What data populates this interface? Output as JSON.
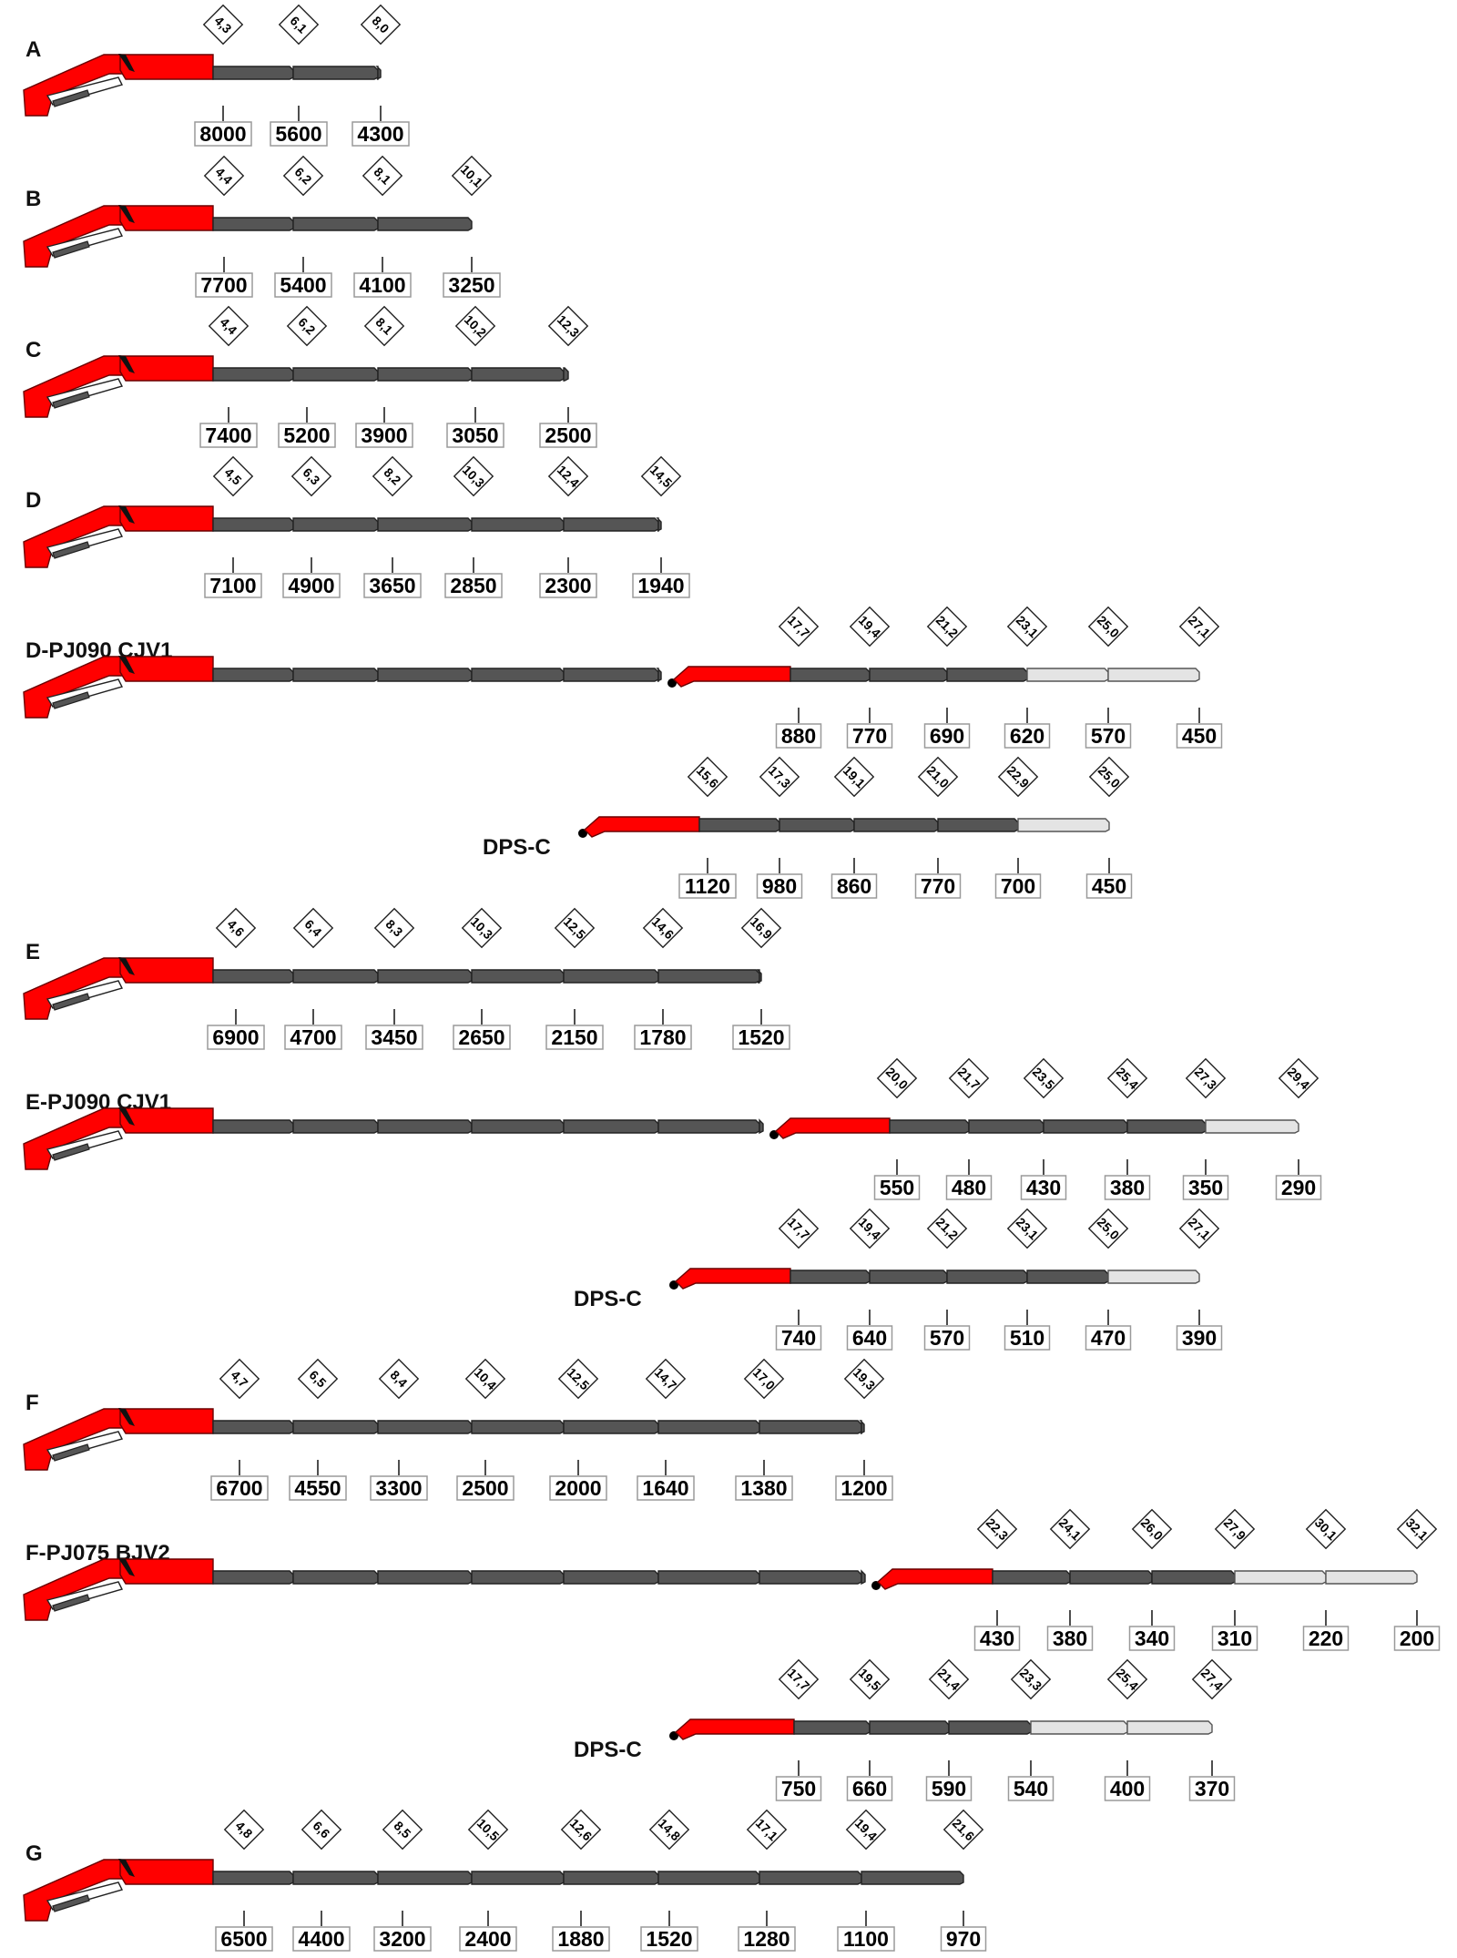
{
  "colors": {
    "boom_red": "#ff0000",
    "boom_dark": "#555555",
    "boom_light": "#e4e4e4"
  },
  "rows": [
    {
      "label": "A",
      "reaches": [
        "4,3",
        "6,1",
        "8,0"
      ],
      "capacities": [
        "8000",
        "5600",
        "4300"
      ]
    },
    {
      "label": "B",
      "reaches": [
        "4,4",
        "6,2",
        "8,1",
        "10,1"
      ],
      "capacities": [
        "7700",
        "5400",
        "4100",
        "3250"
      ]
    },
    {
      "label": "C",
      "reaches": [
        "4,4",
        "6,2",
        "8,1",
        "10,2",
        "12,3"
      ],
      "capacities": [
        "7400",
        "5200",
        "3900",
        "3050",
        "2500"
      ]
    },
    {
      "label": "D",
      "reaches": [
        "4,5",
        "6,3",
        "8,2",
        "10,3",
        "12,4",
        "14,5"
      ],
      "capacities": [
        "7100",
        "4900",
        "3650",
        "2850",
        "2300",
        "1940"
      ]
    },
    {
      "label": "D-PJ090 CJV1",
      "reaches": [
        "17,7",
        "19,4",
        "21,2",
        "23,1",
        "25,0",
        "27,1"
      ],
      "capacities": [
        "880",
        "770",
        "690",
        "620",
        "570",
        "450"
      ]
    },
    {
      "label": "DPS-C",
      "reaches": [
        "15,6",
        "17,3",
        "19,1",
        "21,0",
        "22,9",
        "25,0"
      ],
      "capacities": [
        "1120",
        "980",
        "860",
        "770",
        "700",
        "450"
      ]
    },
    {
      "label": "E",
      "reaches": [
        "4,6",
        "6,4",
        "8,3",
        "10,3",
        "12,5",
        "14,6",
        "16,9"
      ],
      "capacities": [
        "6900",
        "4700",
        "3450",
        "2650",
        "2150",
        "1780",
        "1520"
      ]
    },
    {
      "label": "E-PJ090 CJV1",
      "reaches": [
        "20,0",
        "21,7",
        "23,5",
        "25,4",
        "27,3",
        "29,4"
      ],
      "capacities": [
        "550",
        "480",
        "430",
        "380",
        "350",
        "290"
      ]
    },
    {
      "label": "DPS-C",
      "reaches": [
        "17,7",
        "19,4",
        "21,2",
        "23,1",
        "25,0",
        "27,1"
      ],
      "capacities": [
        "740",
        "640",
        "570",
        "510",
        "470",
        "390"
      ]
    },
    {
      "label": "F",
      "reaches": [
        "4,7",
        "6,5",
        "8,4",
        "10,4",
        "12,5",
        "14,7",
        "17,0",
        "19,3"
      ],
      "capacities": [
        "6700",
        "4550",
        "3300",
        "2500",
        "2000",
        "1640",
        "1380",
        "1200"
      ]
    },
    {
      "label": "F-PJ075 BJV2",
      "reaches": [
        "22,3",
        "24,1",
        "26,0",
        "27,9",
        "30,1",
        "32,1"
      ],
      "capacities": [
        "430",
        "380",
        "340",
        "310",
        "220",
        "200"
      ]
    },
    {
      "label": "DPS-C",
      "reaches": [
        "17,7",
        "19,5",
        "21,4",
        "23,3",
        "25,4",
        "27,4"
      ],
      "capacities": [
        "750",
        "660",
        "590",
        "540",
        "400",
        "370"
      ]
    },
    {
      "label": "G",
      "reaches": [
        "4,8",
        "6,6",
        "8,5",
        "10,5",
        "12,6",
        "14,8",
        "17,1",
        "19,4",
        "21,6"
      ],
      "capacities": [
        "6500",
        "4400",
        "3200",
        "2400",
        "1880",
        "1520",
        "1280",
        "1100",
        "970"
      ]
    }
  ]
}
